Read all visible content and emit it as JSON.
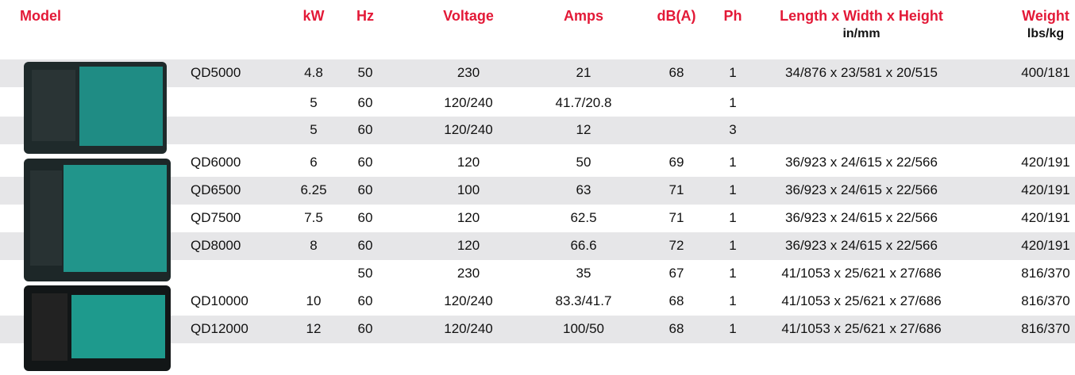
{
  "header": {
    "cells": [
      "Model",
      "kW",
      "Hz",
      "Voltage",
      "Amps",
      "dB(A)",
      "Ph",
      "Length x Width x Height",
      "Weight"
    ],
    "sub": {
      "7": "in/mm",
      "8": "lbs/kg"
    }
  },
  "table": {
    "rows": [
      [
        "QD5000",
        "4.8",
        "50",
        "230",
        "21",
        "68",
        "1",
        "34/876 x 23/581 x 20/515",
        "400/181"
      ],
      [
        null,
        "5",
        "60",
        "120/240",
        "41.7/20.8",
        null,
        "1",
        null,
        null
      ],
      [
        null,
        "5",
        "60",
        "120/240",
        "12",
        null,
        "3",
        null,
        null
      ],
      [
        "QD6000",
        "6",
        "60",
        "120",
        "50",
        "69",
        "1",
        "36/923 x 24/615 x 22/566",
        "420/191"
      ],
      [
        "QD6500",
        "6.25",
        "60",
        "100",
        "63",
        "71",
        "1",
        "36/923 x 24/615 x 22/566",
        "420/191"
      ],
      [
        "QD7500",
        "7.5",
        "60",
        "120",
        "62.5",
        "71",
        "1",
        "36/923 x 24/615 x 22/566",
        "420/191"
      ],
      [
        "QD8000",
        "8",
        "60",
        "120",
        "66.6",
        "72",
        "1",
        "36/923 x 24/615 x 22/566",
        "420/191"
      ],
      [
        null,
        null,
        "50",
        "230",
        "35",
        "67",
        "1",
        "41/1053 x 25/621 x 27/686",
        "816/370"
      ],
      [
        "QD10000",
        "10",
        "60",
        "120/240",
        "83.3/41.7",
        "68",
        "1",
        "41/1053 x 25/621 x 27/686",
        "816/370"
      ],
      [
        "QD12000",
        "12",
        "60",
        "120/240",
        "100/50",
        "68",
        "1",
        "41/1053 x 25/621 x 27/686",
        "816/370"
      ]
    ]
  }
}
